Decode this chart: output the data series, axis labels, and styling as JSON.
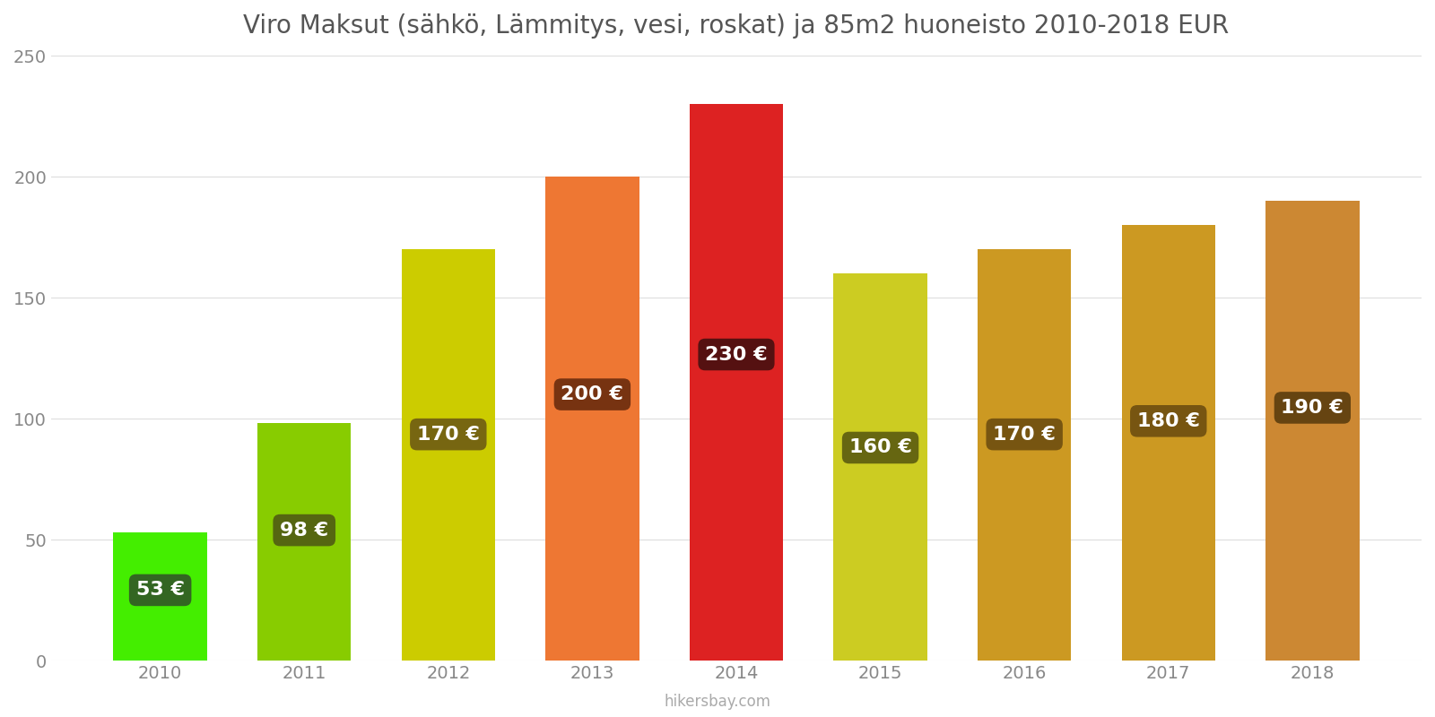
{
  "title": "Viro Maksut (sähkö, Lämmitys, vesi, roskat) ja 85m2 huoneisto 2010-2018 EUR",
  "years": [
    2010,
    2011,
    2012,
    2013,
    2014,
    2015,
    2016,
    2017,
    2018
  ],
  "values": [
    53,
    98,
    170,
    200,
    230,
    160,
    170,
    180,
    190
  ],
  "bar_colors": [
    "#44ee00",
    "#88cc00",
    "#cccc00",
    "#ee7733",
    "#dd2222",
    "#cccc22",
    "#cc9922",
    "#cc9922",
    "#cc8833"
  ],
  "label_bg_colors": [
    "#336622",
    "#556611",
    "#776611",
    "#773311",
    "#551111",
    "#666611",
    "#775511",
    "#775511",
    "#664411"
  ],
  "labels": [
    "53 €",
    "98 €",
    "170 €",
    "200 €",
    "230 €",
    "160 €",
    "170 €",
    "180 €",
    "190 €"
  ],
  "ylim": [
    0,
    250
  ],
  "yticks": [
    0,
    50,
    100,
    150,
    200,
    250
  ],
  "background_color": "#ffffff",
  "grid_color": "#dddddd",
  "title_color": "#555555",
  "tick_color": "#888888",
  "footer": "hikersbay.com",
  "bar_width": 0.65,
  "label_fontsize": 16,
  "title_fontsize": 20,
  "tick_fontsize": 14,
  "footer_fontsize": 12
}
